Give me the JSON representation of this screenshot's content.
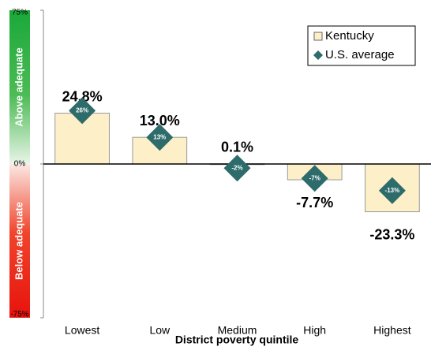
{
  "chart_data": {
    "type": "bar",
    "categories": [
      "Lowest",
      "Low",
      "Medium",
      "High",
      "Highest"
    ],
    "series": [
      {
        "name": "Kentucky",
        "color": "#fdf0c8",
        "values": [
          24.8,
          13.0,
          0.1,
          -7.7,
          -23.3
        ],
        "value_labels": [
          "24.8%",
          "13.0%",
          "0.1%",
          "-7.7%",
          "-23.3%"
        ]
      },
      {
        "name": "U.S. average",
        "color": "#2e6b6b",
        "marker": "diamond",
        "values": [
          26,
          13,
          -2,
          -7,
          -13
        ],
        "value_labels": [
          "26%",
          "13%",
          "-2%",
          "-7%",
          "-13%"
        ]
      }
    ],
    "x_label": "District poverty quintile",
    "bands": [
      "Above adequate",
      "Below adequate"
    ],
    "ylim": [
      -75,
      75
    ],
    "yticks": [
      {
        "value": -75,
        "label": "-75%"
      },
      {
        "value": 0,
        "label": "0%"
      },
      {
        "value": 75,
        "label": "75%"
      }
    ],
    "legend": "upper right"
  }
}
